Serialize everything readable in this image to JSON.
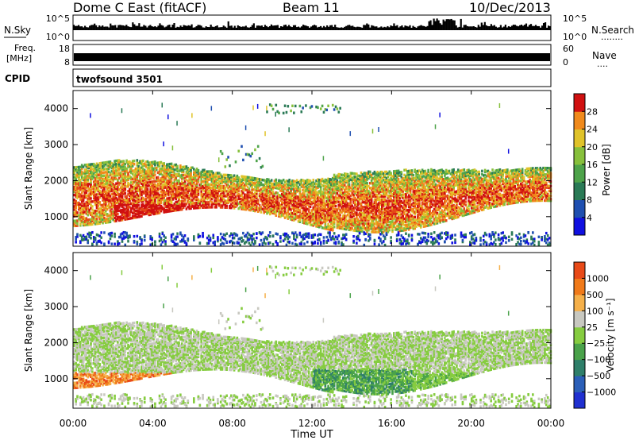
{
  "header": {
    "station": "Dome C East (fitACF)",
    "beam": "Beam 11",
    "date": "10/Dec/2013"
  },
  "strips": {
    "nsky": {
      "label": "N.Sky",
      "ticks": [
        "10^5",
        "10^0"
      ],
      "right_label": "N.Search",
      "right_ticks": [
        "10^5",
        "10^0"
      ],
      "right_dots": "........"
    },
    "freq": {
      "label_line1": "Freq.",
      "label_line2": "[MHz]",
      "ticks": [
        "18",
        "8"
      ],
      "right_label": "Nave",
      "right_ticks": [
        "60",
        "0"
      ],
      "right_dots": "...."
    },
    "cpid": {
      "label": "CPID",
      "program": "twofsound 3501"
    }
  },
  "chart_data": [
    {
      "type": "heatmap",
      "name": "power",
      "ylabel": "Slant Range [km]",
      "yticks": [
        "1000",
        "2000",
        "3000",
        "4000"
      ],
      "ylim": [
        180,
        4500
      ],
      "colorbar_label": "Power [dB]",
      "colorbar_ticks": [
        "4",
        "8",
        "12",
        "16",
        "20",
        "24",
        "28"
      ],
      "colorbar_range": [
        0,
        32
      ],
      "colors": [
        "#1010e0",
        "#1f4fb0",
        "#2a7a56",
        "#4ea34a",
        "#87c03c",
        "#e0c32a",
        "#f08a1c",
        "#e44a18",
        "#d01010"
      ]
    },
    {
      "type": "heatmap",
      "name": "velocity",
      "ylabel": "Slant Range [km]",
      "yticks": [
        "1000",
        "2000",
        "3000",
        "4000"
      ],
      "ylim": [
        180,
        4500
      ],
      "colorbar_label": "Velocity [m s⁻¹]",
      "colorbar_ticks": [
        "1000",
        "500",
        "100",
        "25",
        "−25",
        "−100",
        "−500",
        "−1000"
      ],
      "colors": [
        "#2030d0",
        "#2b5fb8",
        "#2f7f6a",
        "#4aa24a",
        "#86cc40",
        "#c8c8c0",
        "#f5b04a",
        "#f07a1a",
        "#e84a18",
        "#e01010"
      ]
    }
  ],
  "xaxis": {
    "label": "Time UT",
    "ticks": [
      "00:00",
      "04:00",
      "08:00",
      "12:00",
      "16:00",
      "20:00",
      "00:00"
    ],
    "range_hours": [
      0,
      24
    ]
  }
}
